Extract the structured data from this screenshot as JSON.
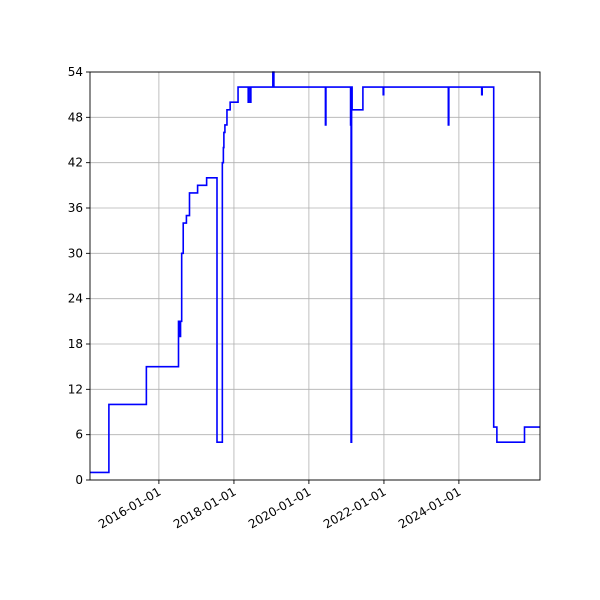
{
  "chart_data": {
    "type": "line",
    "title": "",
    "xlabel": "",
    "ylabel": "",
    "x_axis_type": "date",
    "xlim": [
      "2014-03-01",
      "2026-03-01"
    ],
    "ylim": [
      0,
      54
    ],
    "y_ticks": [
      0,
      6,
      12,
      18,
      24,
      30,
      36,
      42,
      48,
      54
    ],
    "x_ticks": [
      "2016-01-01",
      "2018-01-01",
      "2020-01-01",
      "2022-01-01",
      "2024-01-01"
    ],
    "grid": true,
    "legend": "none",
    "line_color": "#0000ff",
    "series": [
      {
        "x": [
          "2014-03-01",
          "2014-09-01",
          "2014-09-01",
          "2015-09-01",
          "2015-09-01",
          "2016-07-10",
          "2016-07-10",
          "2016-07-20",
          "2016-07-20",
          "2016-07-30",
          "2016-07-30",
          "2016-08-10",
          "2016-08-10",
          "2016-08-25",
          "2016-08-25",
          "2016-09-25",
          "2016-09-25",
          "2016-10-25",
          "2016-10-25",
          "2017-01-05",
          "2017-01-05",
          "2017-01-12",
          "2017-01-12",
          "2017-04-10",
          "2017-04-10",
          "2017-07-20",
          "2017-07-20",
          "2017-09-10",
          "2017-09-10",
          "2017-09-20",
          "2017-09-20",
          "2017-09-25",
          "2017-09-25",
          "2017-10-05",
          "2017-10-05",
          "2017-10-10",
          "2017-10-10",
          "2017-10-25",
          "2017-10-25",
          "2017-11-25",
          "2017-11-25",
          "2018-02-10",
          "2018-02-10",
          "2018-05-20",
          "2018-05-20",
          "2018-05-25",
          "2018-05-25",
          "2018-06-10",
          "2018-06-10",
          "2018-06-15",
          "2018-06-15",
          "2018-08-20",
          "2018-08-20",
          "2019-01-15",
          "2019-01-15",
          "2019-01-25",
          "2019-01-25",
          "2020-06-10",
          "2020-06-10",
          "2020-06-15",
          "2020-06-15",
          "2021-02-10",
          "2021-02-10",
          "2021-02-15",
          "2021-02-15",
          "2021-02-20",
          "2021-02-20",
          "2021-02-25",
          "2021-02-25",
          "2021-06-10",
          "2021-06-10",
          "2021-06-15",
          "2021-06-15",
          "2021-12-25",
          "2021-12-25",
          "2021-12-30",
          "2021-12-30",
          "2023-09-20",
          "2023-09-20",
          "2023-09-25",
          "2023-09-25",
          "2024-08-10",
          "2024-08-10",
          "2024-08-15",
          "2024-08-15",
          "2024-12-05",
          "2024-12-05",
          "2025-01-05",
          "2025-01-05",
          "2025-02-10",
          "2025-02-10",
          "2025-10-01",
          "2025-10-01",
          "2026-03-01"
        ],
        "y": [
          1,
          1,
          10,
          10,
          15,
          15,
          21,
          21,
          19,
          19,
          21,
          21,
          30,
          30,
          34,
          34,
          35,
          35,
          38,
          38,
          38,
          38,
          39,
          39,
          40,
          40,
          5,
          5,
          42,
          42,
          44,
          44,
          46,
          46,
          47,
          47,
          47,
          47,
          49,
          49,
          50,
          50,
          52,
          52,
          50,
          50,
          52,
          52,
          50,
          50,
          52,
          52,
          52,
          52,
          54,
          54,
          52,
          52,
          47,
          47,
          52,
          52,
          47,
          47,
          5,
          5,
          52,
          52,
          49,
          49,
          52,
          52,
          52,
          52,
          51,
          51,
          52,
          52,
          47,
          47,
          52,
          52,
          51,
          51,
          52,
          52,
          7,
          7,
          5,
          5,
          5,
          5,
          7,
          7
        ]
      }
    ]
  }
}
